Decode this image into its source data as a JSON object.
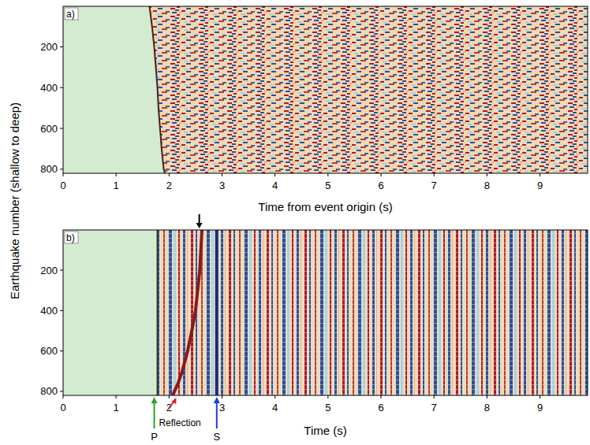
{
  "chart_data": [
    {
      "type": "line",
      "title": "a)",
      "x_label": "Time from event origin (s)",
      "y_label": "Earthquake number (shallow to deep)",
      "xlim": [
        0,
        9.9
      ],
      "ylim": [
        820,
        1
      ],
      "xticks": [
        0,
        1,
        2,
        3,
        4,
        5,
        6,
        7,
        8,
        9
      ],
      "yticks": [
        200,
        400,
        600,
        800
      ],
      "series": [
        {
          "type": "area",
          "color": "#4a1f1f",
          "x": [
            1.63,
            1.68,
            1.72,
            1.75,
            1.78,
            1.8,
            1.83,
            1.86,
            1.9,
            1.92
          ],
          "values": [
            1,
            100,
            200,
            300,
            400,
            500,
            600,
            700,
            800,
            820
          ]
        }
      ]
    },
    {
      "type": "line",
      "title": "b)",
      "x_label": "Time (s)",
      "xlim": [
        0,
        9.9
      ],
      "ylim": [
        820,
        1
      ],
      "xticks": [
        0,
        1,
        2,
        3,
        4,
        5,
        6,
        7,
        8,
        9
      ],
      "yticks": [
        200,
        400,
        600,
        800
      ],
      "series": [
        {
          "type": "area",
          "color": "#1f3a1f",
          "x": [
            1.78,
            1.78,
            1.78,
            1.78,
            1.78
          ],
          "values": [
            1,
            200,
            400,
            600,
            820
          ]
        },
        {
          "type": "line",
          "color": "#8b1a1a",
          "x": [
            2.62,
            2.58,
            2.5,
            2.43,
            2.35,
            2.25,
            2.17,
            2.1,
            2.07
          ],
          "values": [
            1,
            200,
            400,
            500,
            600,
            700,
            760,
            800,
            820
          ]
        },
        {
          "type": "line",
          "color": "#1a2a7a",
          "x": [
            2.9,
            2.9,
            2.9,
            2.9,
            2.9
          ],
          "values": [
            1,
            200,
            400,
            600,
            820
          ]
        }
      ],
      "annotations": [
        {
          "text": "P",
          "x": 1.72,
          "color": "#2ca02c",
          "side": "bottom"
        },
        {
          "text": "Reflection",
          "x": 2.12,
          "color": "#e02020",
          "side": "bottom"
        },
        {
          "text": "S",
          "x": 2.9,
          "color": "#1f3fd0",
          "side": "bottom"
        },
        {
          "x": 2.57,
          "color": "#000000",
          "side": "top"
        }
      ]
    }
  ]
}
